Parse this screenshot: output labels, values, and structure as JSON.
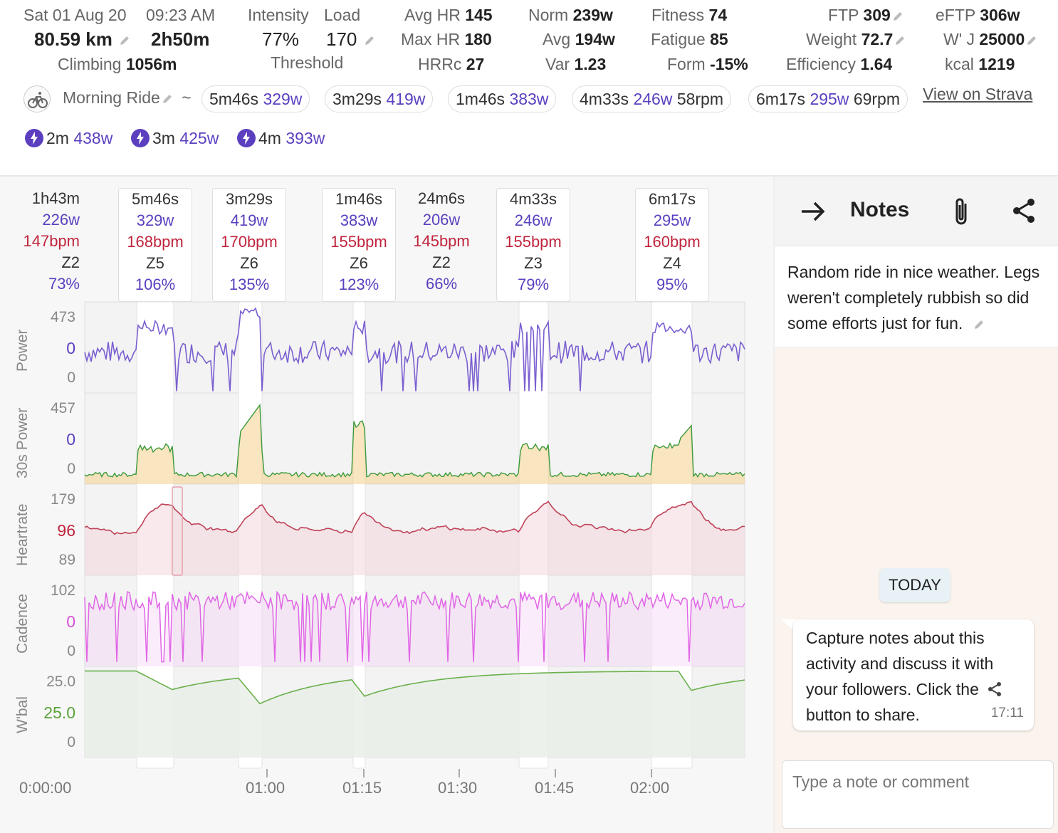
{
  "header": {
    "date": "Sat 01 Aug 20",
    "time": "09:23 AM",
    "distance": "80.59 km",
    "duration": "2h50m",
    "climbing_label": "Climbing",
    "climbing": "1056m",
    "intensity_label": "Intensity",
    "intensity": "77%",
    "load_label": "Load",
    "load": "170",
    "threshold_label": "Threshold",
    "avg_hr_label": "Avg HR",
    "avg_hr": "145",
    "max_hr_label": "Max HR",
    "max_hr": "180",
    "hrrc_label": "HRRc",
    "hrrc": "27",
    "norm_label": "Norm",
    "norm": "239w",
    "avg_label": "Avg",
    "avg": "194w",
    "var_label": "Var",
    "var": "1.23",
    "fitness_label": "Fitness",
    "fitness": "74",
    "fatigue_label": "Fatigue",
    "fatigue": "85",
    "form_label": "Form",
    "form": "-15%",
    "ftp_label": "FTP",
    "ftp": "309",
    "weight_label": "Weight",
    "weight": "72.7",
    "efficiency_label": "Efficiency",
    "efficiency": "1.64",
    "eftp_label": "eFTP",
    "eftp": "306w",
    "wj_label": "W' J",
    "wj": "25000",
    "kcal_label": "kcal",
    "kcal": "1219"
  },
  "ride": {
    "name": "Morning Ride",
    "tilde": "~",
    "strava_link": "View on Strava",
    "intervals": [
      {
        "time": "5m46s",
        "power": "329w",
        "rpm": ""
      },
      {
        "time": "3m29s",
        "power": "419w",
        "rpm": ""
      },
      {
        "time": "1m46s",
        "power": "383w",
        "rpm": ""
      },
      {
        "time": "4m33s",
        "power": "246w",
        "rpm": "58rpm"
      },
      {
        "time": "6m17s",
        "power": "295w",
        "rpm": "69rpm"
      }
    ],
    "bests": [
      {
        "time": "2m",
        "power": "438w"
      },
      {
        "time": "3m",
        "power": "425w"
      },
      {
        "time": "4m",
        "power": "393w"
      }
    ]
  },
  "segments": [
    {
      "time": "1h43m",
      "power": "226w",
      "hr": "147bpm",
      "zone": "Z2",
      "pct": "73%"
    },
    {
      "time": "5m46s",
      "power": "329w",
      "hr": "168bpm",
      "zone": "Z5",
      "pct": "106%"
    },
    {
      "time": "3m29s",
      "power": "419w",
      "hr": "170bpm",
      "zone": "Z6",
      "pct": "135%"
    },
    {
      "time": "1m46s",
      "power": "383w",
      "hr": "155bpm",
      "zone": "Z6",
      "pct": "123%"
    },
    {
      "time": "24m6s",
      "power": "206w",
      "hr": "145bpm",
      "zone": "Z2",
      "pct": "66%"
    },
    {
      "time": "4m33s",
      "power": "246w",
      "hr": "155bpm",
      "zone": "Z3",
      "pct": "79%"
    },
    {
      "time": "6m17s",
      "power": "295w",
      "hr": "160bpm",
      "zone": "Z4",
      "pct": "95%"
    }
  ],
  "charts": {
    "power": {
      "title": "Power",
      "max": "473",
      "cursor": "0",
      "min": "0"
    },
    "power30": {
      "title": "30s Power",
      "max": "457",
      "cursor": "0",
      "min": "0"
    },
    "heartrate": {
      "title": "Heartrate",
      "max": "179",
      "cursor": "96",
      "min": "89"
    },
    "cadence": {
      "title": "Cadence",
      "max": "102",
      "cursor": "0",
      "min": "0"
    },
    "wbal": {
      "title": "W'bal",
      "max": "25.0",
      "cursor": "25.0",
      "min": "0"
    },
    "x_ticks": [
      "0:00:00",
      "01:00",
      "01:15",
      "01:30",
      "01:45",
      "02:00"
    ]
  },
  "colors": {
    "power": "#7b5fd0",
    "heartrate": "#c0435a",
    "cadence": "#e066e6",
    "wbal": "#6ab04c",
    "accent": "#5b3fbf"
  },
  "notes": {
    "title": "Notes",
    "description": "Random ride in nice weather. Legs weren't completely rubbish so did some efforts just for fun.",
    "day_label": "TODAY",
    "message": "Capture notes about this activity and discuss it with your followers. Click the",
    "message_end": "button to share.",
    "message_time": "17:11",
    "input_placeholder": "Type a note or comment"
  }
}
